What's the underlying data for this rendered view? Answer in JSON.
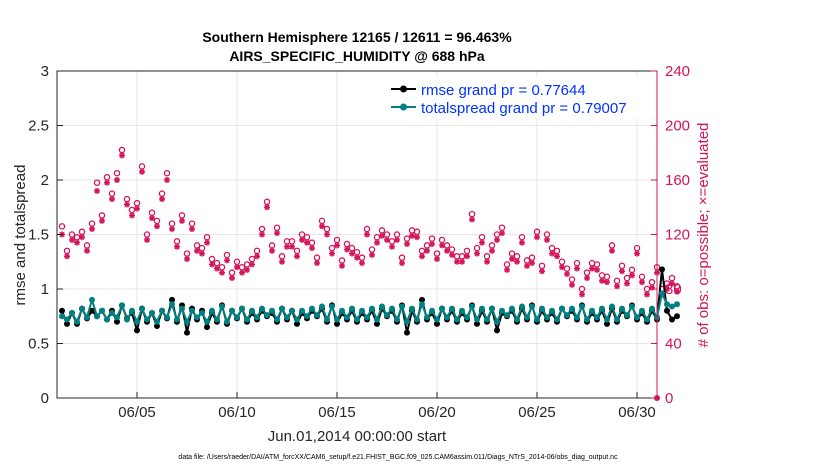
{
  "chart_data": {
    "type": "line",
    "title_line1": "Southern Hemisphere 12165 / 12611 = 96.463%",
    "title_line2": "AIRS_SPECIFIC_HUMIDITY @ 688 hPa",
    "xlabel": "Jun.01,2014 00:00:00 start",
    "ylabel_left": "rmse and totalspread",
    "ylabel_right": "# of obs: o=possible; ×=evaluated",
    "footnote": "data file: /Users/raeder/DAI/ATM_forcXX/CAM6_setup/f.e21.FHIST_BGC.f09_025.CAM6assim.011/Diags_NTrS_2014-06/obs_diag_output.nc",
    "xlim": [
      1,
      31
    ],
    "ylim_left": [
      0,
      3
    ],
    "ylim_right": [
      0,
      240
    ],
    "x_ticks": [
      5,
      10,
      15,
      20,
      25,
      30
    ],
    "x_tick_labels": [
      "06/05",
      "06/10",
      "06/15",
      "06/20",
      "06/25",
      "06/30"
    ],
    "left_ticks": [
      0,
      0.5,
      1,
      1.5,
      2,
      2.5,
      3
    ],
    "left_tick_labels": [
      "0",
      "0.5",
      "1",
      "1.5",
      "2",
      "2.5",
      "3"
    ],
    "right_ticks": [
      0,
      40,
      80,
      120,
      160,
      200,
      240
    ],
    "right_tick_labels": [
      "0",
      "40",
      "80",
      "120",
      "160",
      "200",
      "240"
    ],
    "grid": true,
    "legend_position": "top-right",
    "colors": {
      "rmse": "#000000",
      "spread": "#008080",
      "obs": "#d4145a",
      "legend_text": "#0033ff",
      "grid": "#e6e6e6",
      "axis": "#262626"
    },
    "series": [
      {
        "name": "rmse grand pr = 0.77644",
        "axis": "left",
        "values": [
          0.8,
          0.68,
          0.78,
          0.68,
          0.82,
          0.73,
          0.8,
          0.75,
          0.8,
          0.72,
          0.8,
          0.7,
          0.85,
          0.73,
          0.78,
          0.62,
          0.82,
          0.7,
          0.78,
          0.66,
          0.8,
          0.73,
          0.9,
          0.7,
          0.85,
          0.6,
          0.82,
          0.72,
          0.8,
          0.65,
          0.78,
          0.7,
          0.85,
          0.68,
          0.8,
          0.73,
          0.82,
          0.7,
          0.78,
          0.72,
          0.8,
          0.75,
          0.78,
          0.7,
          0.82,
          0.72,
          0.8,
          0.68,
          0.78,
          0.73,
          0.8,
          0.75,
          0.82,
          0.7,
          0.85,
          0.68,
          0.78,
          0.72,
          0.8,
          0.7,
          0.78,
          0.72,
          0.8,
          0.68,
          0.82,
          0.75,
          0.8,
          0.7,
          0.85,
          0.6,
          0.8,
          0.7,
          0.9,
          0.72,
          0.78,
          0.68,
          0.82,
          0.72,
          0.8,
          0.7,
          0.78,
          0.72,
          0.85,
          0.68,
          0.8,
          0.7,
          0.82,
          0.62,
          0.78,
          0.75,
          0.8,
          0.7,
          0.82,
          0.72,
          0.85,
          0.7,
          0.8,
          0.72,
          0.78,
          0.7,
          0.82,
          0.75,
          0.8,
          0.72,
          0.85,
          0.7,
          0.78,
          0.72,
          0.8,
          0.68,
          0.82,
          0.7,
          0.8,
          0.75,
          0.85,
          0.72,
          0.78,
          0.7,
          0.8,
          0.72,
          1.18,
          0.8,
          0.72,
          0.75
        ],
        "samples_note": "plotted at 4 samples per day starting at day 1.5"
      },
      {
        "name": "totalspread grand pr = 0.79007",
        "axis": "left",
        "values": [
          0.75,
          0.72,
          0.78,
          0.7,
          0.82,
          0.74,
          0.9,
          0.75,
          0.8,
          0.72,
          0.78,
          0.74,
          0.85,
          0.72,
          0.8,
          0.7,
          0.82,
          0.72,
          0.78,
          0.7,
          0.8,
          0.74,
          0.86,
          0.72,
          0.82,
          0.7,
          0.8,
          0.74,
          0.78,
          0.7,
          0.8,
          0.72,
          0.84,
          0.7,
          0.8,
          0.74,
          0.82,
          0.72,
          0.8,
          0.74,
          0.82,
          0.76,
          0.8,
          0.72,
          0.82,
          0.74,
          0.8,
          0.72,
          0.8,
          0.75,
          0.82,
          0.76,
          0.84,
          0.72,
          0.84,
          0.72,
          0.8,
          0.74,
          0.82,
          0.72,
          0.8,
          0.74,
          0.82,
          0.72,
          0.84,
          0.76,
          0.82,
          0.72,
          0.84,
          0.7,
          0.82,
          0.72,
          0.86,
          0.74,
          0.8,
          0.72,
          0.82,
          0.74,
          0.82,
          0.72,
          0.8,
          0.74,
          0.84,
          0.72,
          0.82,
          0.72,
          0.82,
          0.7,
          0.8,
          0.76,
          0.82,
          0.72,
          0.84,
          0.74,
          0.84,
          0.72,
          0.82,
          0.74,
          0.8,
          0.72,
          0.82,
          0.76,
          0.82,
          0.74,
          0.84,
          0.72,
          0.8,
          0.74,
          0.82,
          0.72,
          0.84,
          0.72,
          0.82,
          0.76,
          0.84,
          0.74,
          0.8,
          0.72,
          0.82,
          0.74,
          0.96,
          0.86,
          0.84,
          0.86
        ]
      },
      {
        "name": "obs possible",
        "axis": "right",
        "values": [
          126,
          108,
          120,
          118,
          122,
          112,
          128,
          158,
          134,
          162,
          150,
          165,
          182,
          146,
          138,
          143,
          170,
          120,
          136,
          130,
          150,
          165,
          128,
          115,
          134,
          106,
          128,
          112,
          110,
          118,
          102,
          99,
          96,
          105,
          92,
          100,
          96,
          98,
          102,
          108,
          124,
          144,
          112,
          125,
          104,
          115,
          115,
          108,
          120,
          118,
          114,
          103,
          130,
          124,
          110,
          116,
          101,
          113,
          110,
          107,
          103,
          124,
          109,
          118,
          123,
          120,
          115,
          120,
          103,
          117,
          123,
          122,
          108,
          112,
          117,
          106,
          116,
          112,
          109,
          104,
          104,
          108,
          135,
          110,
          118,
          104,
          112,
          120,
          125,
          98,
          106,
          104,
          118,
          101,
          103,
          122,
          97,
          120,
          110,
          108,
          100,
          95,
          87,
          99,
          80,
          92,
          99,
          98,
          90,
          89,
          112,
          86,
          97,
          88,
          94,
          110,
          89,
          80,
          85,
          96,
          80,
          84,
          88,
          82
        ],
        "marker": "circle"
      },
      {
        "name": "obs evaluated",
        "axis": "right",
        "values": [
          120,
          104,
          116,
          114,
          118,
          108,
          124,
          152,
          130,
          158,
          146,
          160,
          178,
          142,
          134,
          139,
          166,
          116,
          132,
          126,
          146,
          160,
          124,
          111,
          130,
          102,
          124,
          108,
          106,
          114,
          98,
          95,
          92,
          101,
          88,
          96,
          92,
          94,
          98,
          104,
          120,
          140,
          108,
          121,
          100,
          111,
          111,
          104,
          116,
          114,
          110,
          99,
          126,
          120,
          106,
          112,
          97,
          109,
          106,
          103,
          99,
          120,
          105,
          114,
          119,
          116,
          111,
          116,
          99,
          113,
          119,
          118,
          104,
          108,
          113,
          102,
          112,
          108,
          105,
          100,
          100,
          104,
          131,
          106,
          114,
          100,
          108,
          116,
          121,
          94,
          102,
          100,
          114,
          97,
          99,
          118,
          93,
          116,
          106,
          104,
          96,
          91,
          83,
          95,
          76,
          88,
          95,
          94,
          86,
          85,
          108,
          82,
          93,
          84,
          90,
          106,
          85,
          76,
          81,
          92,
          76,
          80,
          84,
          78
        ],
        "marker": "asterisk"
      }
    ],
    "legend": [
      {
        "label": "rmse grand pr = 0.77644",
        "series": "rmse"
      },
      {
        "label": "totalspread grand pr = 0.79007",
        "series": "spread"
      }
    ]
  }
}
